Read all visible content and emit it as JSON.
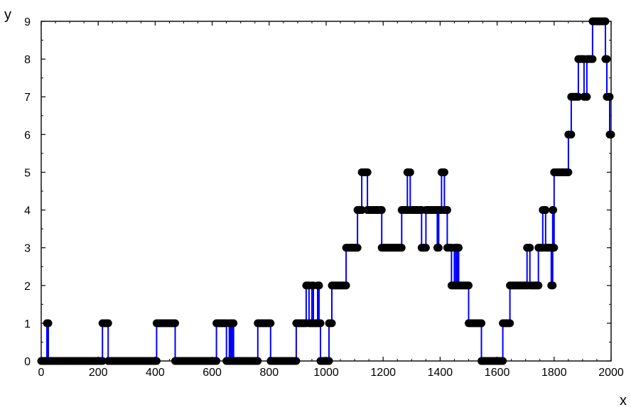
{
  "chart_data": {
    "type": "line",
    "title": "",
    "xlabel": "x",
    "ylabel": "y",
    "xlim": [
      0,
      2000
    ],
    "ylim": [
      0,
      9
    ],
    "x_ticks": [
      "0",
      "200",
      "400",
      "600",
      "800",
      "1000",
      "1200",
      "1400",
      "1600",
      "1800",
      "2000"
    ],
    "y_ticks": [
      "0",
      "1",
      "2",
      "3",
      "4",
      "5",
      "6",
      "7",
      "8",
      "9"
    ],
    "grid": false,
    "markers": true,
    "line_color": "#0000ff",
    "marker_color": "#000000",
    "series": [
      {
        "points": [
          [
            0,
            0
          ],
          [
            20,
            0
          ],
          [
            20,
            1
          ],
          [
            25,
            1
          ],
          [
            25,
            0
          ],
          [
            215,
            0
          ],
          [
            215,
            1
          ],
          [
            235,
            1
          ],
          [
            235,
            0
          ],
          [
            405,
            0
          ],
          [
            405,
            1
          ],
          [
            470,
            1
          ],
          [
            470,
            0
          ],
          [
            615,
            0
          ],
          [
            615,
            1
          ],
          [
            650,
            1
          ],
          [
            650,
            0
          ],
          [
            660,
            0
          ],
          [
            660,
            1
          ],
          [
            665,
            1
          ],
          [
            665,
            0
          ],
          [
            670,
            0
          ],
          [
            670,
            1
          ],
          [
            675,
            1
          ],
          [
            675,
            0
          ],
          [
            760,
            0
          ],
          [
            760,
            1
          ],
          [
            805,
            1
          ],
          [
            805,
            0
          ],
          [
            895,
            0
          ],
          [
            895,
            1
          ],
          [
            930,
            1
          ],
          [
            930,
            2
          ],
          [
            940,
            2
          ],
          [
            940,
            1
          ],
          [
            950,
            1
          ],
          [
            950,
            2
          ],
          [
            955,
            2
          ],
          [
            955,
            1
          ],
          [
            970,
            1
          ],
          [
            970,
            2
          ],
          [
            975,
            2
          ],
          [
            975,
            1
          ],
          [
            980,
            1
          ],
          [
            980,
            0
          ],
          [
            1010,
            0
          ],
          [
            1010,
            1
          ],
          [
            1020,
            1
          ],
          [
            1020,
            2
          ],
          [
            1070,
            2
          ],
          [
            1070,
            3
          ],
          [
            1110,
            3
          ],
          [
            1110,
            4
          ],
          [
            1125,
            4
          ],
          [
            1125,
            5
          ],
          [
            1145,
            5
          ],
          [
            1145,
            4
          ],
          [
            1195,
            4
          ],
          [
            1195,
            3
          ],
          [
            1265,
            3
          ],
          [
            1265,
            4
          ],
          [
            1285,
            4
          ],
          [
            1285,
            5
          ],
          [
            1295,
            5
          ],
          [
            1295,
            4
          ],
          [
            1335,
            4
          ],
          [
            1335,
            3
          ],
          [
            1350,
            3
          ],
          [
            1350,
            4
          ],
          [
            1390,
            4
          ],
          [
            1390,
            3
          ],
          [
            1395,
            3
          ],
          [
            1395,
            4
          ],
          [
            1405,
            4
          ],
          [
            1405,
            5
          ],
          [
            1415,
            5
          ],
          [
            1415,
            4
          ],
          [
            1425,
            4
          ],
          [
            1425,
            3
          ],
          [
            1440,
            3
          ],
          [
            1440,
            2
          ],
          [
            1450,
            2
          ],
          [
            1450,
            3
          ],
          [
            1455,
            3
          ],
          [
            1455,
            2
          ],
          [
            1460,
            2
          ],
          [
            1460,
            3
          ],
          [
            1465,
            3
          ],
          [
            1465,
            2
          ],
          [
            1500,
            2
          ],
          [
            1500,
            1
          ],
          [
            1545,
            1
          ],
          [
            1545,
            0
          ],
          [
            1620,
            0
          ],
          [
            1620,
            1
          ],
          [
            1645,
            1
          ],
          [
            1645,
            2
          ],
          [
            1705,
            2
          ],
          [
            1705,
            3
          ],
          [
            1715,
            3
          ],
          [
            1715,
            2
          ],
          [
            1745,
            2
          ],
          [
            1745,
            3
          ],
          [
            1760,
            3
          ],
          [
            1760,
            4
          ],
          [
            1770,
            4
          ],
          [
            1770,
            3
          ],
          [
            1790,
            3
          ],
          [
            1790,
            2
          ],
          [
            1795,
            2
          ],
          [
            1795,
            4
          ],
          [
            1797,
            4
          ],
          [
            1797,
            3
          ],
          [
            1800,
            3
          ],
          [
            1800,
            5
          ],
          [
            1850,
            5
          ],
          [
            1850,
            6
          ],
          [
            1860,
            6
          ],
          [
            1860,
            7
          ],
          [
            1885,
            7
          ],
          [
            1885,
            8
          ],
          [
            1905,
            8
          ],
          [
            1905,
            7
          ],
          [
            1915,
            7
          ],
          [
            1915,
            8
          ],
          [
            1935,
            8
          ],
          [
            1935,
            9
          ],
          [
            1980,
            9
          ],
          [
            1980,
            8
          ],
          [
            1985,
            8
          ],
          [
            1985,
            7
          ],
          [
            1990,
            7
          ],
          [
            1995,
            7
          ],
          [
            1995,
            6
          ],
          [
            2000,
            6
          ]
        ]
      }
    ]
  }
}
